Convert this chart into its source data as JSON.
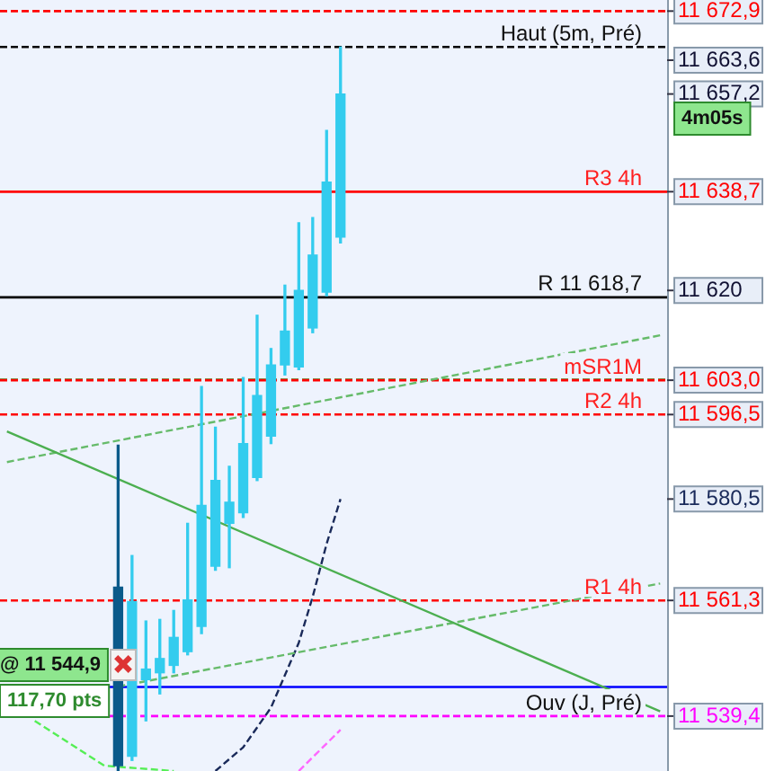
{
  "chart_data": {
    "type": "candlestick",
    "colors": [
      null,
      null,
      null,
      null,
      null,
      null,
      null,
      null,
      "#0a5a8a",
      "#33ccee",
      "#33ccee",
      "#33ccee",
      "#33ccee",
      "#33ccee",
      "#33ccee",
      "#33ccee",
      "#33ccee",
      "#33ccee",
      "#33ccee",
      "#33ccee",
      "#33ccee",
      "#33ccee",
      "#33ccee",
      "#33ccee",
      "#33ccee",
      null,
      null,
      null,
      null,
      null,
      null,
      null,
      null,
      null,
      null,
      null,
      null,
      null,
      null,
      null,
      null,
      null,
      null,
      null,
      null,
      null,
      null,
      null
    ],
    "categories": [
      null,
      null,
      null,
      null,
      null,
      null,
      null,
      null,
      null,
      null,
      null,
      null,
      null,
      null,
      null,
      null,
      null,
      null,
      null,
      null,
      null,
      null,
      null,
      null,
      null,
      null,
      null,
      null,
      null,
      null,
      null,
      null,
      null,
      null,
      null,
      null,
      null,
      null,
      null,
      null,
      null,
      null,
      null,
      null,
      null,
      null,
      null,
      null
    ],
    "ohlc": [
      null,
      null,
      null,
      null,
      null,
      null,
      null,
      null,
      [
        11563.8,
        11590.7,
        11529,
        11530
      ],
      [
        11531.8,
        11569.8,
        11531,
        11561.1
      ],
      [
        11546.3,
        11557.4,
        11538.5,
        11548.3
      ],
      [
        11547.6,
        11557.7,
        11543.6,
        11550.3
      ],
      [
        11549,
        11559.4,
        11547.6,
        11554.3
      ],
      [
        11551.6,
        11575.9,
        11551,
        11561.4
      ],
      [
        11556.4,
        11601.8,
        11555,
        11579.3
      ],
      [
        11567.8,
        11594.1,
        11567,
        11584
      ],
      [
        11575.9,
        11586.7,
        11567.5,
        11579.9
      ],
      [
        11577.9,
        11603.5,
        11577,
        11591
      ],
      [
        11584.6,
        11615.3,
        11584,
        11600.1
      ],
      [
        11592.4,
        11609,
        11591,
        11605.9
      ],
      [
        11605.9,
        11621,
        11604,
        11612.3
      ],
      [
        11605.5,
        11632.8,
        11605,
        11620
      ],
      [
        11612.9,
        11633.8,
        11612,
        11626.7
      ],
      [
        11619.7,
        11650.3,
        11619,
        11640.5
      ],
      [
        11630.1,
        11666.1,
        11629,
        11657.2
      ],
      null,
      null,
      null,
      null,
      null,
      null,
      null,
      null,
      null,
      null,
      null,
      null,
      null,
      null,
      null,
      null,
      null,
      null,
      null,
      null,
      null,
      null,
      null
    ],
    "series": [
      {
        "type": "line",
        "color": "#4caf50",
        "line_style": "solid",
        "values": [
          11593.3,
          null,
          null,
          null,
          null,
          null,
          null,
          null,
          null,
          null,
          null,
          null,
          null,
          null,
          null,
          null,
          null,
          null,
          null,
          null,
          null,
          null,
          null,
          null,
          null,
          null,
          null,
          null,
          null,
          null,
          null,
          null,
          null,
          null,
          null,
          null,
          null,
          null,
          null,
          null,
          null,
          null,
          null,
          null,
          null,
          null,
          null,
          11540.3
        ]
      },
      {
        "type": "line",
        "color": "#66bb6a",
        "line_style": "dashed",
        "values": [
          11587.5,
          null,
          null,
          null,
          null,
          null,
          null,
          null,
          null,
          null,
          null,
          null,
          null,
          null,
          null,
          null,
          null,
          null,
          null,
          null,
          null,
          null,
          null,
          null,
          null,
          null,
          null,
          null,
          null,
          null,
          null,
          null,
          null,
          null,
          null,
          null,
          null,
          null,
          null,
          null,
          null,
          null,
          null,
          null,
          null,
          null,
          null,
          11611.5
        ]
      },
      {
        "type": "line",
        "color": "#66bb6a",
        "line_style": "dashed",
        "values": [
          null,
          null,
          null,
          null,
          null,
          null,
          null,
          null,
          11545,
          null,
          null,
          null,
          null,
          null,
          null,
          null,
          null,
          null,
          null,
          null,
          null,
          null,
          null,
          null,
          null,
          null,
          null,
          null,
          null,
          null,
          null,
          null,
          null,
          null,
          null,
          null,
          null,
          null,
          null,
          null,
          null,
          null,
          null,
          null,
          null,
          null,
          null,
          11564.5
        ]
      },
      {
        "type": "line",
        "color": "#1a2a5a",
        "line_style": "dashed",
        "values": [
          null,
          null,
          null,
          null,
          null,
          null,
          null,
          null,
          null,
          null,
          null,
          null,
          null,
          null,
          null,
          11529,
          null,
          11533.5,
          null,
          11541,
          null,
          11553.3,
          11562,
          11572,
          11580.5,
          null,
          null,
          null,
          null,
          null,
          null,
          null,
          null,
          null,
          null,
          null,
          null,
          null,
          null,
          null,
          null,
          null,
          null,
          null,
          null,
          null,
          null,
          null
        ]
      },
      {
        "type": "line",
        "color": "#55ee55",
        "line_style": "dashed",
        "values": [
          null,
          null,
          11538.5,
          null,
          null,
          null,
          null,
          11530,
          null,
          null,
          null,
          null,
          11529,
          null,
          null,
          null,
          null,
          null,
          null,
          null,
          null,
          null,
          null,
          null,
          null,
          null,
          null,
          null,
          null,
          null,
          null,
          null,
          null,
          null,
          null,
          null,
          null,
          null,
          null,
          null,
          null,
          null,
          null,
          null,
          null,
          null,
          null,
          null
        ]
      },
      {
        "type": "line",
        "color": "#ff66ff",
        "line_style": "dashed",
        "values": [
          null,
          null,
          null,
          null,
          null,
          null,
          null,
          null,
          null,
          null,
          null,
          null,
          null,
          null,
          null,
          null,
          null,
          null,
          null,
          null,
          null,
          11529,
          null,
          null,
          11536.8,
          null,
          null,
          null,
          null,
          null,
          null,
          null,
          null,
          null,
          null,
          null,
          null,
          null,
          null,
          null,
          null,
          null,
          null,
          null,
          null,
          null,
          null,
          null
        ]
      }
    ],
    "ylim": [
      11529,
      11675
    ],
    "yticks": [
      {
        "value": 11672.9,
        "label": "11 672,9"
      },
      {
        "value": 11663.6,
        "label": "11 663,6"
      },
      {
        "value": 11657.2,
        "label": "11 657,2"
      },
      {
        "value": 11638.7,
        "label": "11 638,7"
      },
      11620,
      {
        "value": 11603.0,
        "label": "11 603,0"
      },
      {
        "value": 11596.5,
        "label": "11 596,5"
      },
      {
        "value": 11580.5,
        "label": "11 580,5"
      },
      {
        "value": 11561.3,
        "label": "11 561,3"
      },
      {
        "value": 11539.4,
        "label": "11 539,4"
      }
    ],
    "tick_labels": "y",
    "ref_lines": [
      {
        "axis": "y",
        "value": 11672.9,
        "color": "#ff0000",
        "line_style": "dashed"
      },
      {
        "axis": "y",
        "value": 11666.1,
        "label": "Haut (5m, Pré)",
        "color": "#000000",
        "line_style": "dashed"
      },
      {
        "axis": "y",
        "value": 11638.7,
        "label": "R3 4h",
        "color": "#ff0000",
        "line_style": "solid"
      },
      {
        "axis": "y",
        "value": 11618.7,
        "label": "R 11 618,7",
        "color": "#000000",
        "line_style": "solid"
      },
      {
        "axis": "y",
        "value": 11603.1,
        "color": "#2ca02c",
        "line_style": "dashed"
      },
      {
        "axis": "y",
        "value": 11603.0,
        "label": "mSR1M",
        "color": "#ff0000",
        "line_style": "dashed"
      },
      {
        "axis": "y",
        "value": 11596.5,
        "label": "R2 4h",
        "color": "#ff0000",
        "line_style": "dashed"
      },
      {
        "axis": "y",
        "value": 11561.3,
        "label": "R1 4h",
        "color": "#ff0000",
        "line_style": "dashed"
      },
      {
        "axis": "y",
        "value": 11544.9,
        "color": "#0000ff",
        "line_style": "solid"
      },
      {
        "axis": "y",
        "value": 11539.4,
        "label": "Ouv (J, Pré)",
        "color": "#ff00ff",
        "line_style": "dashed"
      }
    ],
    "annotations": [
      "@ 11 544,9",
      "117,70 pts",
      "4m05s"
    ],
    "grid": false,
    "legend": false
  }
}
